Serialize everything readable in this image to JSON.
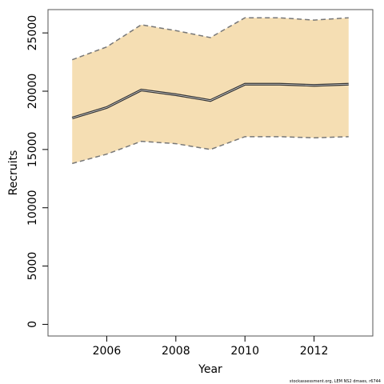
{
  "chart_data": {
    "type": "line",
    "xlabel": "Year",
    "ylabel": "Recruits",
    "xlim": [
      2004.3,
      2013.7
    ],
    "ylim": [
      -1000,
      27000
    ],
    "x_ticks": [
      2006,
      2008,
      2010,
      2012
    ],
    "y_ticks": [
      0,
      5000,
      10000,
      15000,
      20000,
      25000
    ],
    "x": [
      2005,
      2006,
      2007,
      2008,
      2009,
      2010,
      2011,
      2012,
      2013
    ],
    "series": [
      {
        "role": "estimate",
        "values": [
          17700,
          18600,
          20100,
          19700,
          19200,
          20600,
          20600,
          20500,
          20600
        ]
      },
      {
        "role": "upper",
        "values": [
          22700,
          23800,
          25700,
          25200,
          24600,
          26300,
          26300,
          26100,
          26300
        ]
      },
      {
        "role": "lower",
        "values": [
          13800,
          14600,
          15700,
          15500,
          15000,
          16100,
          16100,
          16000,
          16100
        ]
      }
    ],
    "grid": false,
    "colors": {
      "band": "#f5deb3",
      "estimate": "#333333",
      "bound": "#777777",
      "frame": "#555555"
    }
  },
  "footer": "stockassessment.org, LEM NS2 dmaes, r6744"
}
